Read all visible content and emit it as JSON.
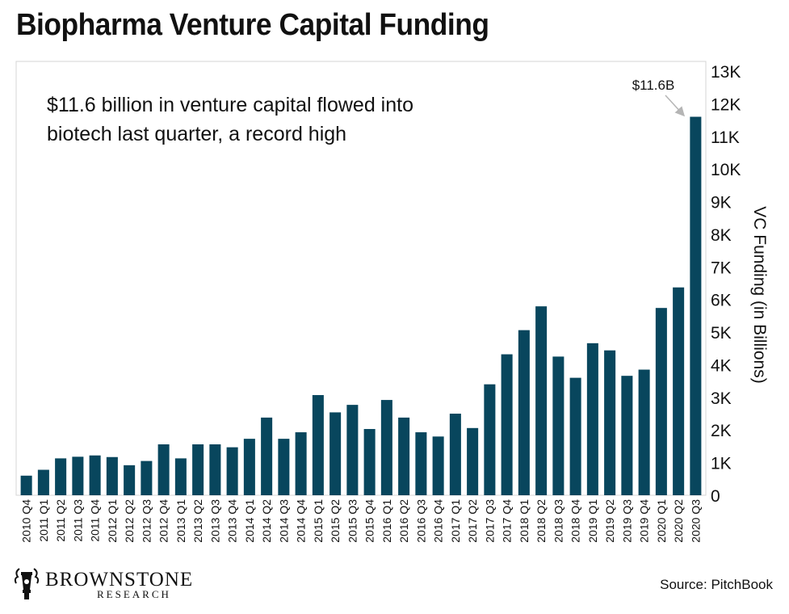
{
  "page": {
    "title": "Biopharma Venture Capital Funding",
    "source": "Source: PitchBook",
    "logo": {
      "name": "BROWNSTONE",
      "sub": "RESEARCH"
    }
  },
  "chart_data": {
    "type": "bar",
    "title": "Biopharma Venture Capital Funding",
    "annotation": [
      "$11.6 billion in venture capital flowed into",
      "biotech last quarter, a record high"
    ],
    "peak_label": "$11.6B",
    "ylabel": "VC Funding (in Billions)",
    "ylim": [
      0,
      13000
    ],
    "yticks": [
      0,
      1000,
      2000,
      3000,
      4000,
      5000,
      6000,
      7000,
      8000,
      9000,
      10000,
      11000,
      12000,
      13000
    ],
    "ytick_labels": [
      "0",
      "1K",
      "2K",
      "3K",
      "4K",
      "5K",
      "6K",
      "7K",
      "8K",
      "9K",
      "10K",
      "11K",
      "12K",
      "13K"
    ],
    "bar_color": "#08465d",
    "categories": [
      "2010 Q4",
      "2011 Q1",
      "2011 Q2",
      "2011 Q3",
      "2011 Q4",
      "2012 Q1",
      "2012 Q2",
      "2012 Q3",
      "2012 Q4",
      "2013 Q1",
      "2013 Q2",
      "2013 Q3",
      "2013 Q4",
      "2014 Q1",
      "2014 Q2",
      "2014 Q3",
      "2014 Q4",
      "2015 Q1",
      "2015 Q2",
      "2015 Q3",
      "2015 Q4",
      "2016 Q1",
      "2016 Q2",
      "2016 Q3",
      "2016 Q4",
      "2017 Q1",
      "2017 Q2",
      "2017 Q3",
      "2017 Q4",
      "2018 Q1",
      "2018 Q2",
      "2018 Q3",
      "2018 Q4",
      "2019 Q1",
      "2019 Q2",
      "2019 Q3",
      "2019 Q4",
      "2020 Q1",
      "2020 Q2",
      "2020 Q3"
    ],
    "values": [
      600,
      780,
      1130,
      1180,
      1220,
      1170,
      920,
      1050,
      1560,
      1130,
      1560,
      1560,
      1470,
      1730,
      2380,
      1730,
      1930,
      3070,
      2540,
      2770,
      2030,
      2920,
      2380,
      1930,
      1800,
      2500,
      2060,
      3400,
      4320,
      5060,
      5790,
      4250,
      3600,
      4660,
      4440,
      3660,
      3850,
      5740,
      6370,
      11600
    ]
  }
}
